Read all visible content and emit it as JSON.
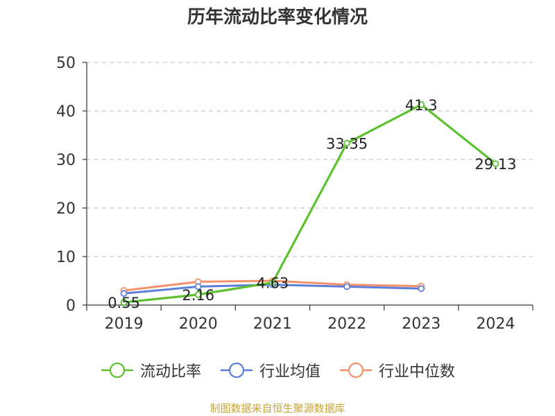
{
  "chart_data": {
    "type": "line",
    "title": "历年流动比率变化情况",
    "categories": [
      "2019",
      "2020",
      "2021",
      "2022",
      "2023",
      "2024"
    ],
    "ylim": [
      0,
      50
    ],
    "yticks": [
      0,
      10,
      20,
      30,
      40,
      50
    ],
    "grid": "horizontal dashed",
    "legend_position": "bottom",
    "series": [
      {
        "name": "流动比率",
        "color": "#5cc12d",
        "values": [
          0.55,
          2.16,
          4.63,
          33.35,
          41.3,
          29.13
        ],
        "labels": [
          "0.55",
          "2.16",
          "4.63",
          "33.35",
          "41.3",
          "29.13"
        ]
      },
      {
        "name": "行业均值",
        "color": "#5b7fd9",
        "values": [
          2.4,
          3.8,
          4.2,
          3.8,
          3.4,
          null
        ]
      },
      {
        "name": "行业中位数",
        "color": "#f5906a",
        "values": [
          3.0,
          4.8,
          5.0,
          4.2,
          3.9,
          null
        ]
      }
    ]
  },
  "source_note": "制图数据来自恒生聚源数据库"
}
